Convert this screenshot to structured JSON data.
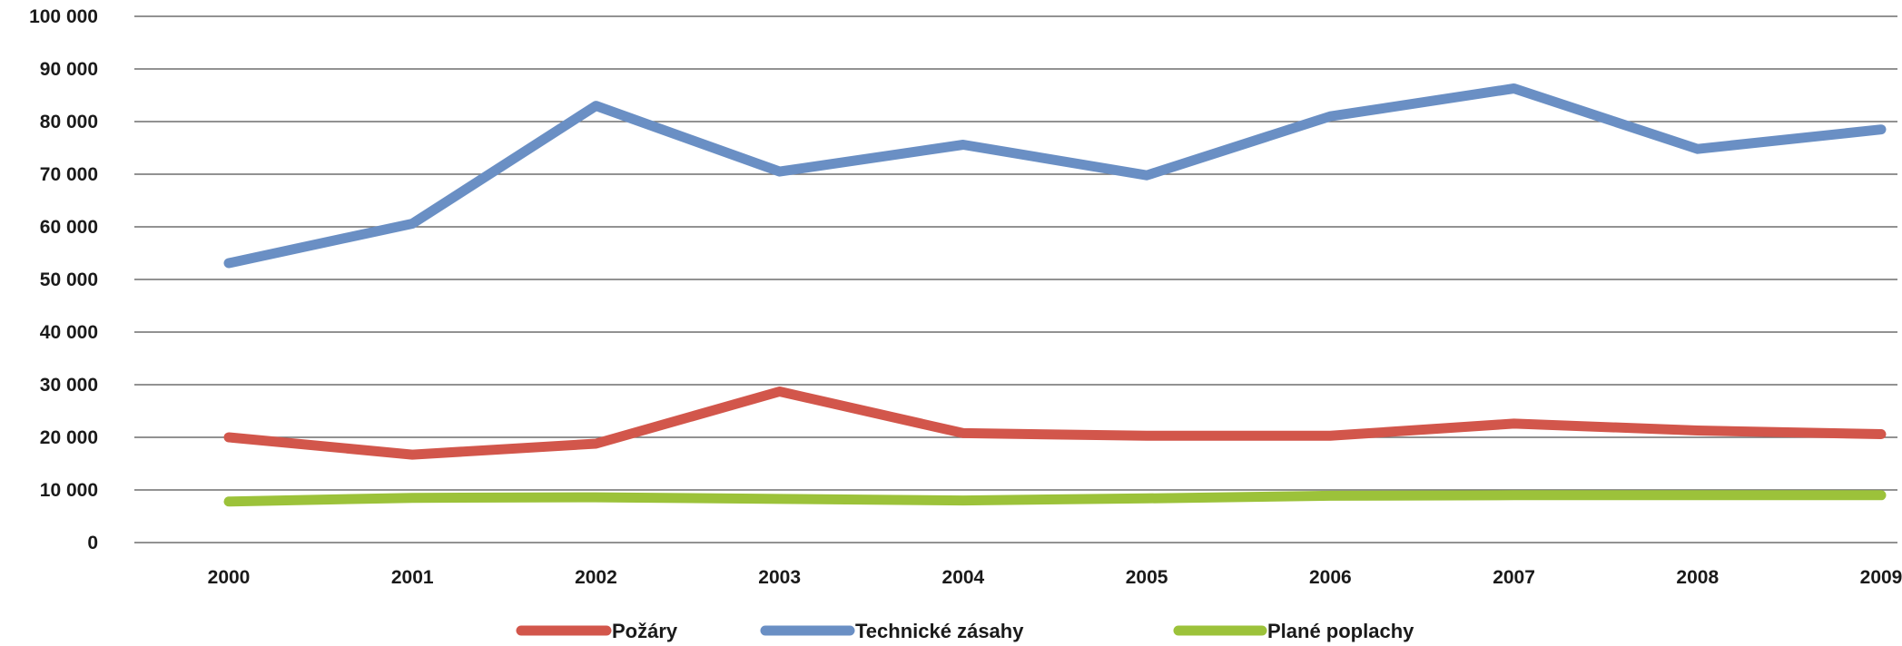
{
  "chart_data": {
    "type": "line",
    "title": "",
    "xlabel": "",
    "ylabel": "",
    "categories": [
      "2000",
      "2001",
      "2002",
      "2003",
      "2004",
      "2005",
      "2006",
      "2007",
      "2008",
      "2009"
    ],
    "ylim": [
      0,
      100000
    ],
    "yticks": [
      0,
      10000,
      20000,
      30000,
      40000,
      50000,
      60000,
      70000,
      80000,
      90000,
      100000
    ],
    "ytick_labels": [
      "0",
      "10 000",
      "20 000",
      "30 000",
      "40 000",
      "50 000",
      "60 000",
      "70 000",
      "80 000",
      "90 000",
      "100 000"
    ],
    "grid": true,
    "legend_placement": "bottom",
    "series": [
      {
        "name": "Požáry",
        "color": "#d2564b",
        "values": [
          20000,
          16700,
          18800,
          28700,
          20800,
          20300,
          20300,
          22600,
          21300,
          20600
        ]
      },
      {
        "name": "Technické zásahy",
        "color": "#6a8fc4",
        "values": [
          53100,
          60600,
          83000,
          70500,
          75600,
          69800,
          81000,
          86300,
          74800,
          78500
        ]
      },
      {
        "name": "Plané poplachy",
        "color": "#9cc23a",
        "values": [
          7800,
          8500,
          8600,
          8300,
          8000,
          8400,
          8900,
          9000,
          9000,
          9000
        ]
      }
    ]
  }
}
